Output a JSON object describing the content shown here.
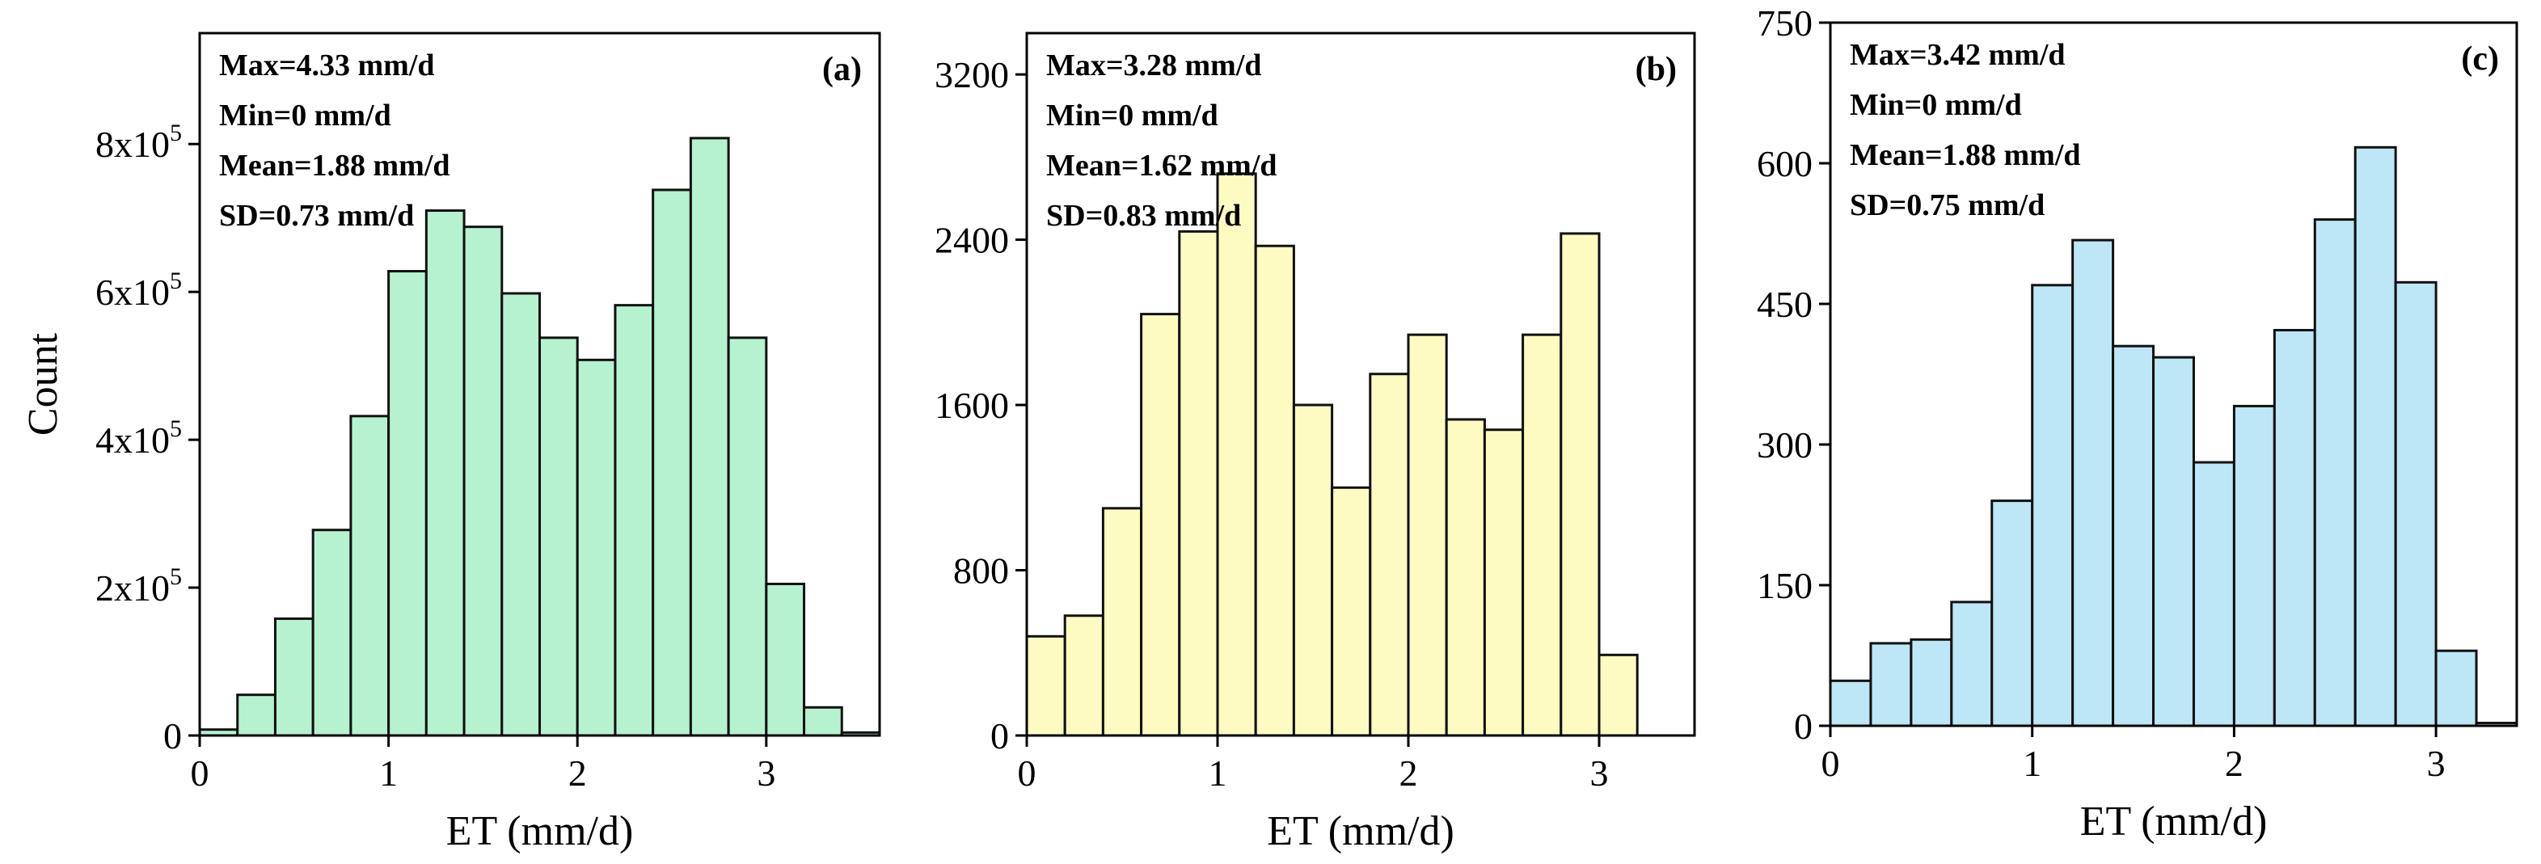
{
  "chart_data": [
    {
      "type": "bar",
      "panel_label": "(a)",
      "xlabel": "ET (mm/d)",
      "ylabel": "Count",
      "bar_color": "#b6f2cf",
      "bin_width": 0.2,
      "xlim": [
        0,
        3.6
      ],
      "ylim": [
        0,
        950000
      ],
      "xticks": [
        0,
        1,
        2,
        3
      ],
      "xtick_labels": [
        "0",
        "1",
        "2",
        "3"
      ],
      "yticks": [
        0,
        200000,
        400000,
        600000,
        800000
      ],
      "ytick_labels": [
        {
          "base": "0",
          "exp": ""
        },
        {
          "base": "2x10",
          "exp": "5"
        },
        {
          "base": "4x10",
          "exp": "5"
        },
        {
          "base": "6x10",
          "exp": "5"
        },
        {
          "base": "8x10",
          "exp": "5"
        }
      ],
      "bin_starts": [
        0,
        0.2,
        0.4,
        0.6,
        0.8,
        1.0,
        1.2,
        1.4,
        1.6,
        1.8,
        2.0,
        2.2,
        2.4,
        2.6,
        2.8,
        3.0,
        3.2,
        3.4
      ],
      "values": [
        8000,
        55000,
        158000,
        278000,
        432000,
        628000,
        710000,
        688000,
        598000,
        538000,
        508000,
        582000,
        738000,
        808000,
        538000,
        205000,
        38000,
        4000
      ],
      "stats": [
        "Max=4.33 mm/d",
        "Min=0 mm/d",
        "Mean=1.88 mm/d",
        "SD=0.73 mm/d"
      ]
    },
    {
      "type": "bar",
      "panel_label": "(b)",
      "xlabel": "ET (mm/d)",
      "ylabel": "",
      "bar_color": "#fdfbc1",
      "bin_width": 0.2,
      "xlim": [
        0,
        3.5
      ],
      "ylim": [
        0,
        3400
      ],
      "xticks": [
        0,
        1,
        2,
        3
      ],
      "xtick_labels": [
        "0",
        "1",
        "2",
        "3"
      ],
      "yticks": [
        0,
        800,
        1600,
        2400,
        3200
      ],
      "ytick_labels": [
        {
          "base": "0",
          "exp": ""
        },
        {
          "base": "800",
          "exp": ""
        },
        {
          "base": "1600",
          "exp": ""
        },
        {
          "base": "2400",
          "exp": ""
        },
        {
          "base": "3200",
          "exp": ""
        }
      ],
      "bin_starts": [
        0,
        0.2,
        0.4,
        0.6,
        0.8,
        1.0,
        1.2,
        1.4,
        1.6,
        1.8,
        2.0,
        2.2,
        2.4,
        2.6,
        2.8,
        3.0
      ],
      "values": [
        480,
        580,
        1100,
        2040,
        2440,
        2720,
        2370,
        1600,
        1200,
        1750,
        1940,
        1530,
        1480,
        1940,
        2430,
        390
      ],
      "stats": [
        "Max=3.28 mm/d",
        "Min=0 mm/d",
        "Mean=1.62 mm/d",
        "SD=0.83 mm/d"
      ]
    },
    {
      "type": "bar",
      "panel_label": "(c)",
      "xlabel": "ET (mm/d)",
      "ylabel": "",
      "bar_color": "#bde6f6",
      "bin_width": 0.2,
      "xlim": [
        0,
        3.4
      ],
      "ylim": [
        0,
        750
      ],
      "xticks": [
        0,
        1,
        2,
        3
      ],
      "xtick_labels": [
        "0",
        "1",
        "2",
        "3"
      ],
      "yticks": [
        0,
        150,
        300,
        450,
        600,
        750
      ],
      "ytick_labels": [
        {
          "base": "0",
          "exp": ""
        },
        {
          "base": "150",
          "exp": ""
        },
        {
          "base": "300",
          "exp": ""
        },
        {
          "base": "450",
          "exp": ""
        },
        {
          "base": "600",
          "exp": ""
        },
        {
          "base": "750",
          "exp": ""
        }
      ],
      "bin_starts": [
        0,
        0.2,
        0.4,
        0.6,
        0.8,
        1.0,
        1.2,
        1.4,
        1.6,
        1.8,
        2.0,
        2.2,
        2.4,
        2.6,
        2.8,
        3.0,
        3.2
      ],
      "values": [
        48,
        88,
        92,
        132,
        240,
        470,
        518,
        405,
        393,
        281,
        341,
        422,
        540,
        617,
        473,
        80,
        3
      ],
      "stats": [
        "Max=3.42 mm/d",
        "Min=0 mm/d",
        "Mean=1.88 mm/d",
        "SD=0.75 mm/d"
      ]
    }
  ]
}
